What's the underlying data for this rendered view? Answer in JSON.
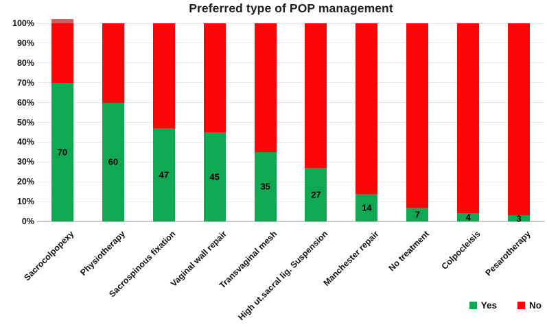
{
  "title": "Preferred type of POP management",
  "chart_data": {
    "type": "bar",
    "stacked": true,
    "orientation": "vertical",
    "title": "Preferred type of POP management",
    "categories": [
      "Sacrocolpopexy",
      "Physiotherapy",
      "Sacrospinous fixation",
      "Vaginal wall repair",
      "Transvaginal mesh",
      "High ut.sacral lig. Suspension",
      "Manchester repair",
      "No treatment",
      "Colpocleisis",
      "Pesarotherapy"
    ],
    "series": [
      {
        "name": "Yes",
        "color": "#10a853",
        "values": [
          70,
          60,
          47,
          45,
          35,
          27,
          14,
          7,
          4,
          3
        ]
      },
      {
        "name": "No",
        "color": "#fb0606",
        "values": [
          30,
          40,
          53,
          55,
          65,
          73,
          86,
          93,
          96,
          97
        ]
      }
    ],
    "data_labels_yes": [
      "70",
      "60",
      "47",
      "45",
      "35",
      "27",
      "14",
      "7",
      "4",
      "3"
    ],
    "y_ticks": [
      "0%",
      "10%",
      "20%",
      "30%",
      "40%",
      "50%",
      "60%",
      "70%",
      "80%",
      "90%",
      "100%"
    ],
    "ylim": [
      0,
      100
    ],
    "grid": true,
    "legend_position": "bottom-right",
    "first_bar_cap": {
      "color": "#d45c5c",
      "note": "small muted-red sliver above 100% on first bar"
    }
  },
  "legend": {
    "items": [
      {
        "label": "Yes",
        "color": "#10a853"
      },
      {
        "label": "No",
        "color": "#fb0606"
      }
    ]
  }
}
